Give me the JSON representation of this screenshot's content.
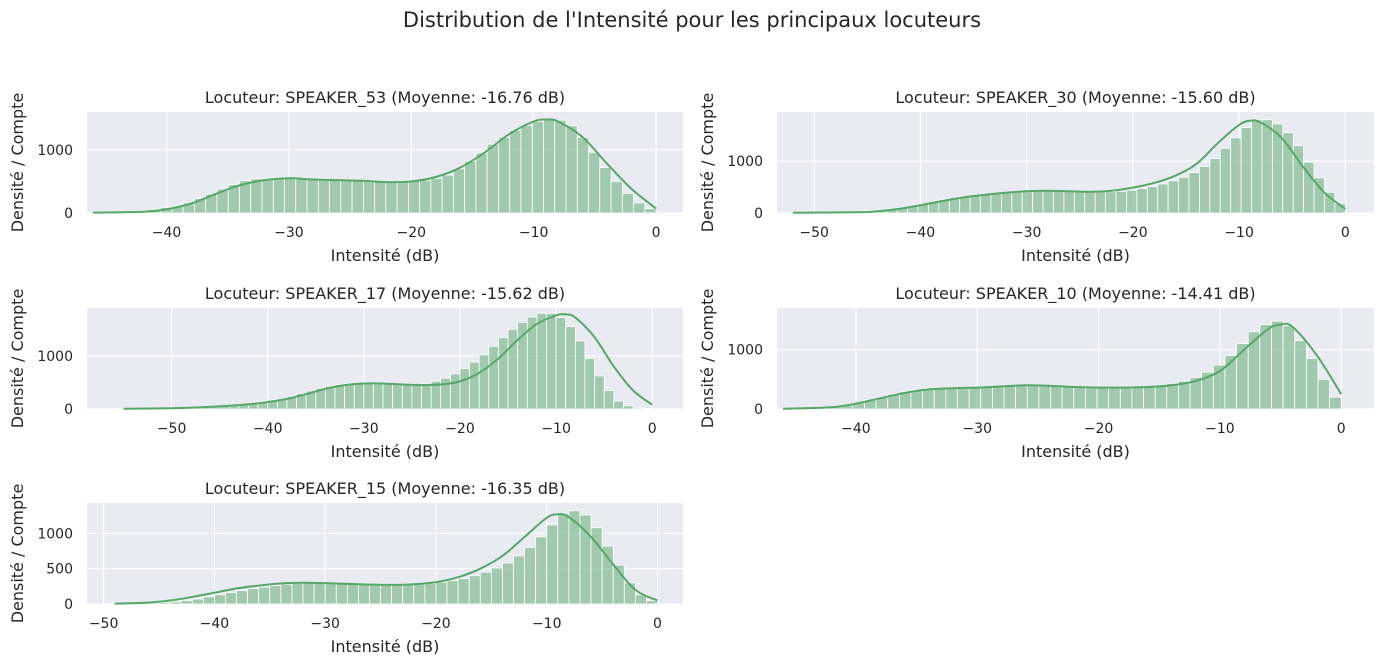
{
  "figure": {
    "title": "Distribution de l'Intensité pour les principaux locuteurs"
  },
  "style": {
    "axes_bg": "#eaeaf2",
    "grid_color": "#ffffff",
    "bar_fill": "#55a868",
    "bar_opacity": 0.5,
    "bar_edge": "#ffffff",
    "kde_color": "#55a868",
    "text_color": "#262626"
  },
  "chart_data": [
    {
      "type": "bar",
      "title": "Locuteur: SPEAKER_53 (Moyenne: -16.76 dB)",
      "xlabel": "Intensité (dB)",
      "ylabel": "Densité / Compte",
      "xlim": [
        -46.5,
        2.2
      ],
      "ylim": [
        0,
        1600
      ],
      "xticks": [
        -40,
        -30,
        -20,
        -10,
        0
      ],
      "yticks": [
        0,
        1000
      ],
      "grid": true,
      "bin_range": [
        -46,
        0
      ],
      "values": [
        5,
        10,
        15,
        25,
        40,
        60,
        85,
        110,
        160,
        230,
        300,
        380,
        450,
        510,
        540,
        550,
        560,
        555,
        540,
        535,
        520,
        515,
        520,
        510,
        500,
        490,
        485,
        490,
        505,
        520,
        550,
        600,
        700,
        820,
        950,
        1090,
        1200,
        1310,
        1390,
        1450,
        1480,
        1470,
        1380,
        1200,
        960,
        720,
        500,
        310,
        160,
        70
      ],
      "kde_x": [
        -46,
        -42,
        -40,
        -38,
        -36,
        -34,
        -32,
        -30,
        -28,
        -26,
        -24,
        -22,
        -20,
        -18,
        -16,
        -14,
        -12,
        -10,
        -9,
        -8,
        -6,
        -4,
        -2,
        0
      ],
      "kde_y": [
        5,
        20,
        60,
        150,
        300,
        440,
        520,
        550,
        530,
        520,
        510,
        490,
        500,
        570,
        720,
        960,
        1250,
        1450,
        1480,
        1450,
        1200,
        780,
        380,
        70
      ]
    },
    {
      "type": "bar",
      "title": "Locuteur: SPEAKER_30 (Moyenne: -15.60 dB)",
      "xlabel": "Intensité (dB)",
      "ylabel": "Densité / Compte",
      "xlim": [
        -53.5,
        2.7
      ],
      "ylim": [
        0,
        1950
      ],
      "xticks": [
        -50,
        -40,
        -30,
        -20,
        -10,
        0
      ],
      "yticks": [
        0,
        1000
      ],
      "grid": true,
      "bin_range": [
        -52,
        0
      ],
      "values": [
        5,
        8,
        10,
        12,
        15,
        20,
        30,
        45,
        60,
        80,
        110,
        140,
        180,
        220,
        260,
        290,
        320,
        340,
        360,
        375,
        390,
        400,
        410,
        420,
        425,
        430,
        430,
        425,
        420,
        410,
        410,
        420,
        440,
        470,
        510,
        560,
        620,
        690,
        780,
        900,
        1050,
        1250,
        1450,
        1650,
        1800,
        1800,
        1720,
        1550,
        1300,
        980,
        680,
        400,
        180
      ],
      "kde_x": [
        -52,
        -46,
        -44,
        -42,
        -40,
        -38,
        -36,
        -34,
        -32,
        -30,
        -28,
        -26,
        -24,
        -22,
        -20,
        -18,
        -16,
        -14,
        -12,
        -10,
        -9,
        -8,
        -6,
        -4,
        -2,
        0
      ],
      "kde_y": [
        5,
        15,
        35,
        80,
        150,
        230,
        300,
        350,
        390,
        420,
        430,
        420,
        410,
        430,
        490,
        580,
        720,
        950,
        1350,
        1700,
        1780,
        1750,
        1450,
        900,
        400,
        80
      ]
    },
    {
      "type": "bar",
      "title": "Locuteur: SPEAKER_17 (Moyenne: -15.62 dB)",
      "xlabel": "Intensité (dB)",
      "ylabel": "Densité / Compte",
      "xlim": [
        -58.8,
        3.2
      ],
      "ylim": [
        0,
        1900
      ],
      "xticks": [
        -50,
        -40,
        -30,
        -20,
        -10,
        0
      ],
      "yticks": [
        0,
        1000
      ],
      "grid": true,
      "bin_range": [
        -55,
        0
      ],
      "values": [
        5,
        8,
        10,
        12,
        15,
        18,
        22,
        28,
        35,
        45,
        60,
        75,
        95,
        115,
        140,
        170,
        200,
        240,
        290,
        340,
        390,
        430,
        460,
        480,
        490,
        490,
        480,
        470,
        460,
        455,
        460,
        480,
        520,
        580,
        660,
        760,
        880,
        1020,
        1180,
        1340,
        1500,
        1630,
        1730,
        1800,
        1800,
        1720,
        1550,
        1280,
        950,
        620,
        350,
        150,
        60,
        20,
        10
      ],
      "kde_x": [
        -55,
        -50,
        -46,
        -42,
        -40,
        -38,
        -36,
        -34,
        -32,
        -30,
        -28,
        -26,
        -24,
        -22,
        -20,
        -18,
        -16,
        -14,
        -12,
        -10,
        -9,
        -8,
        -6,
        -4,
        -2,
        0
      ],
      "kde_y": [
        5,
        15,
        40,
        90,
        130,
        190,
        280,
        380,
        450,
        480,
        480,
        460,
        450,
        460,
        520,
        680,
        950,
        1300,
        1600,
        1760,
        1780,
        1720,
        1350,
        800,
        350,
        80
      ]
    },
    {
      "type": "bar",
      "title": "Locuteur: SPEAKER_10 (Moyenne: -14.41 dB)",
      "xlabel": "Intensité (dB)",
      "ylabel": "Densité / Compte",
      "xlim": [
        -46.5,
        2.7
      ],
      "ylim": [
        0,
        1700
      ],
      "xticks": [
        -40,
        -30,
        -20,
        -10,
        0
      ],
      "yticks": [
        0,
        1000
      ],
      "grid": true,
      "bin_range": [
        -46,
        0
      ],
      "values": [
        5,
        10,
        15,
        20,
        30,
        60,
        100,
        150,
        200,
        250,
        290,
        320,
        340,
        350,
        350,
        360,
        360,
        370,
        380,
        390,
        400,
        400,
        390,
        380,
        370,
        360,
        350,
        350,
        355,
        360,
        370,
        380,
        400,
        430,
        470,
        530,
        620,
        740,
        900,
        1100,
        1300,
        1420,
        1480,
        1400,
        1150,
        850,
        500,
        200
      ],
      "kde_x": [
        -46,
        -42,
        -40,
        -38,
        -36,
        -34,
        -32,
        -30,
        -28,
        -26,
        -24,
        -22,
        -20,
        -18,
        -16,
        -14,
        -12,
        -10,
        -8,
        -6,
        -5,
        -4,
        -2,
        0
      ],
      "kde_y": [
        5,
        30,
        90,
        180,
        270,
        330,
        350,
        360,
        380,
        400,
        390,
        370,
        360,
        360,
        370,
        400,
        470,
        640,
        1000,
        1350,
        1420,
        1380,
        900,
        250
      ]
    },
    {
      "type": "bar",
      "title": "Locuteur: SPEAKER_15 (Moyenne: -16.35 dB)",
      "xlabel": "Intensité (dB)",
      "ylabel": "Densité / Compte",
      "xlim": [
        -51.5,
        2.3
      ],
      "ylim": [
        0,
        1430
      ],
      "xticks": [
        -50,
        -40,
        -30,
        -20,
        -10,
        0
      ],
      "yticks": [
        0,
        500,
        1000
      ],
      "grid": true,
      "bin_range": [
        -49,
        0
      ],
      "values": [
        5,
        8,
        10,
        15,
        20,
        30,
        50,
        70,
        100,
        130,
        160,
        190,
        220,
        240,
        260,
        280,
        290,
        300,
        300,
        295,
        290,
        285,
        280,
        275,
        270,
        270,
        275,
        280,
        290,
        310,
        330,
        360,
        400,
        450,
        510,
        580,
        680,
        800,
        950,
        1120,
        1280,
        1320,
        1260,
        1080,
        820,
        550,
        300,
        130,
        50
      ],
      "kde_x": [
        -49,
        -46,
        -44,
        -42,
        -40,
        -38,
        -36,
        -34,
        -32,
        -30,
        -28,
        -26,
        -24,
        -22,
        -20,
        -18,
        -16,
        -14,
        -12,
        -10,
        -9,
        -8,
        -6,
        -4,
        -2,
        0
      ],
      "kde_y": [
        5,
        20,
        50,
        100,
        160,
        220,
        260,
        290,
        300,
        295,
        285,
        275,
        270,
        280,
        310,
        380,
        500,
        680,
        950,
        1220,
        1270,
        1230,
        950,
        560,
        200,
        50
      ]
    }
  ]
}
